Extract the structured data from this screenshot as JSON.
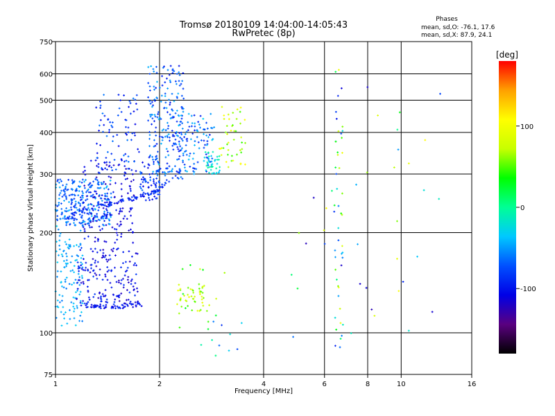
{
  "chart_data": {
    "type": "scatter",
    "title": "Tromsø 20180109 14:04:00-14:05:43",
    "subtitle": "RwPretec (8p)",
    "xlabel": "Frequency [MHz]",
    "ylabel": "Stationary phase Virtual Height [km]",
    "x_scale": "log",
    "y_scale": "log",
    "xlim": [
      1,
      16
    ],
    "ylim": [
      75,
      750
    ],
    "x_ticks": [
      1,
      2,
      4,
      6,
      8,
      10,
      16
    ],
    "x_tick_labels": [
      "1",
      "2",
      "4",
      "6",
      "8",
      "10",
      "16"
    ],
    "x_grid": [
      2,
      4,
      6,
      8,
      10,
      16
    ],
    "y_ticks": [
      75,
      100,
      200,
      300,
      400,
      500,
      600,
      750
    ],
    "y_tick_labels": [
      "75",
      "100",
      "200",
      "300",
      "400",
      "500",
      "600",
      "750"
    ],
    "y_grid": [
      100,
      200,
      300,
      400,
      500,
      600
    ],
    "stats": {
      "heading": "Phases",
      "line_o": "mean, sd,O: -76.1, 17.6",
      "line_x": "mean, sd,X:  87.9, 24.1"
    },
    "colorbar": {
      "label": "[deg]",
      "min": -180,
      "max": 180,
      "ticks": [
        100,
        0,
        -100
      ],
      "tick_labels": [
        "100",
        "0",
        "-100"
      ],
      "stops": [
        "#000000",
        "#5a0080",
        "#0000e6",
        "#0050ff",
        "#00c8ff",
        "#00ff96",
        "#00ff00",
        "#c8ff00",
        "#ffff00",
        "#ffa000",
        "#ff0000"
      ]
    },
    "clusters": [
      {
        "f": [
          1.0,
          1.45
        ],
        "h": [
          210,
          290
        ],
        "n": 280,
        "phase": [
          -90,
          -40
        ]
      },
      {
        "f": [
          1.0,
          1.2
        ],
        "h": [
          105,
          210
        ],
        "n": 120,
        "phase": [
          -60,
          -30
        ]
      },
      {
        "f": [
          1.15,
          1.75
        ],
        "h": [
          120,
          180
        ],
        "n": 170,
        "phase": [
          -125,
          -80
        ]
      },
      {
        "f": [
          1.2,
          1.7
        ],
        "h": [
          185,
          330
        ],
        "n": 150,
        "phase": [
          -125,
          -90
        ]
      },
      {
        "f": [
          1.3,
          1.75
        ],
        "h": [
          300,
          520
        ],
        "n": 90,
        "phase": [
          -110,
          -60
        ]
      },
      {
        "f": [
          1.75,
          2.0
        ],
        "h": [
          250,
          330
        ],
        "n": 70,
        "phase": [
          -110,
          -60
        ]
      },
      {
        "f": [
          1.85,
          2.35
        ],
        "h": [
          290,
          640
        ],
        "n": 210,
        "phase": [
          -100,
          -40
        ]
      },
      {
        "f": [
          2.2,
          2.9
        ],
        "h": [
          300,
          460
        ],
        "n": 120,
        "phase": [
          -100,
          -30
        ]
      },
      {
        "f": [
          2.7,
          3.0
        ],
        "h": [
          300,
          350
        ],
        "n": 35,
        "phase": [
          -40,
          0
        ]
      },
      {
        "f": [
          2.95,
          3.55
        ],
        "h": [
          310,
          480
        ],
        "n": 45,
        "phase": [
          40,
          110
        ]
      },
      {
        "f": [
          2.2,
          2.7
        ],
        "h": [
          115,
          140
        ],
        "n": 40,
        "phase": [
          50,
          110
        ]
      },
      {
        "f": [
          2.25,
          3.3
        ],
        "h": [
          100,
          160
        ],
        "n": 20,
        "phase": [
          10,
          90
        ]
      },
      {
        "f": [
          2.6,
          3.6
        ],
        "h": [
          85,
          110
        ],
        "n": 10,
        "phase": [
          -110,
          60
        ]
      },
      {
        "f": [
          6.4,
          6.8
        ],
        "h": [
          90,
          620
        ],
        "n": 45,
        "phase": [
          -120,
          100
        ]
      },
      {
        "f": [
          4.8,
          13.2
        ],
        "h": [
          90,
          560
        ],
        "n": 40,
        "phase": [
          -130,
          110
        ]
      }
    ],
    "curves": [
      {
        "f": [
          1.05,
          1.25,
          1.45,
          1.65,
          1.85,
          2.0,
          2.15
        ],
        "h": [
          218,
          238,
          245,
          252,
          262,
          272,
          290
        ],
        "n": 80,
        "phase": [
          -110,
          -75
        ]
      },
      {
        "f": [
          1.2,
          1.35,
          1.55,
          1.78
        ],
        "h": [
          121,
          120,
          120,
          122
        ],
        "n": 60,
        "phase": [
          -115,
          -85
        ]
      }
    ]
  }
}
